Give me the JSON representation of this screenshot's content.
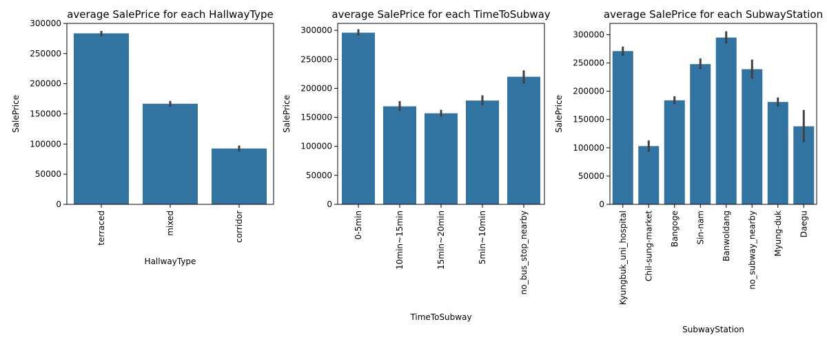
{
  "chart_data": [
    {
      "type": "bar",
      "title": "average SalePrice for each HallwayType",
      "xlabel": "HallwayType",
      "ylabel": "SalePrice",
      "ylim": [
        0,
        300000
      ],
      "yticks": [
        0,
        50000,
        100000,
        150000,
        200000,
        250000,
        300000
      ],
      "ytick_labels": [
        "0",
        "50000",
        "100000",
        "150000",
        "200000",
        "250000",
        "300000"
      ],
      "categories": [
        "terraced",
        "mixed",
        "corridor"
      ],
      "values": [
        283500,
        166800,
        92600
      ],
      "ci_low": [
        278500,
        162000,
        87500
      ],
      "ci_high": [
        287500,
        171500,
        97500
      ],
      "bar_color": "#3274a1",
      "error_color": "#404040",
      "grid": false
    },
    {
      "type": "bar",
      "title": "average SalePrice for each TimeToSubway",
      "xlabel": "TimeToSubway",
      "ylabel": "SalePrice",
      "ylim": [
        0,
        312000
      ],
      "yticks": [
        0,
        50000,
        100000,
        150000,
        200000,
        250000,
        300000
      ],
      "ytick_labels": [
        "0",
        "50000",
        "100000",
        "150000",
        "200000",
        "250000",
        "300000"
      ],
      "categories": [
        "0-5min",
        "10min~15min",
        "15min~20min",
        "5min~10min",
        "no_bus_stop_nearby"
      ],
      "values": [
        296000,
        169000,
        157000,
        179000,
        220000
      ],
      "ci_low": [
        291000,
        161000,
        151000,
        171000,
        208000
      ],
      "ci_high": [
        302000,
        178000,
        163000,
        188000,
        231000
      ],
      "bar_color": "#3274a1",
      "error_color": "#404040",
      "grid": false
    },
    {
      "type": "bar",
      "title": "average SalePrice for each SubwayStation",
      "xlabel": "SubwayStation",
      "ylabel": "SalePrice",
      "ylim": [
        0,
        320000
      ],
      "yticks": [
        0,
        50000,
        100000,
        150000,
        200000,
        250000,
        300000
      ],
      "ytick_labels": [
        "0",
        "50000",
        "100000",
        "150000",
        "200000",
        "250000",
        "300000"
      ],
      "categories": [
        "Kyungbuk_uni_hospital",
        "Chil-sung-market",
        "Bangoge",
        "Sin-nam",
        "Banwoldang",
        "no_subway_nearby",
        "Myung-duk",
        "Daegu"
      ],
      "values": [
        271000,
        103000,
        184000,
        248000,
        295000,
        239000,
        181000,
        138000
      ],
      "ci_low": [
        263000,
        93000,
        177000,
        239000,
        284000,
        222000,
        173000,
        110000
      ],
      "ci_high": [
        279000,
        113000,
        191000,
        258000,
        306000,
        256000,
        189000,
        167000
      ],
      "bar_color": "#3274a1",
      "error_color": "#404040",
      "grid": false
    }
  ]
}
